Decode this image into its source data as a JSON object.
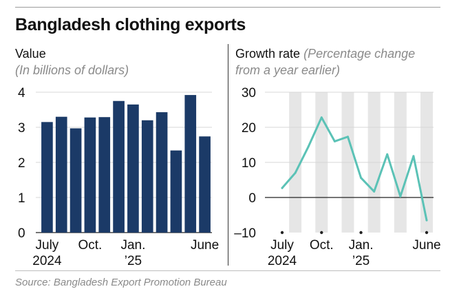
{
  "title": "Bangladesh clothing exports",
  "left_panel": {
    "heading": "Value",
    "note": "(In billions of dollars)"
  },
  "right_panel": {
    "heading": "Growth rate",
    "note_line1": "(Percentage change",
    "note_line2": "from a year earlier)"
  },
  "source": "Source: Bangladesh Export Promotion Bureau",
  "colors": {
    "bar": "#1b3a67",
    "line": "#5bc2b6",
    "band": "#e6e6e6",
    "text": "#111111",
    "note": "#8a8a8a",
    "grid": "#d7d7d7"
  },
  "chart_data": [
    {
      "type": "bar",
      "title": "Value",
      "ylabel": "In billions of dollars",
      "categories": [
        "Jul 2024",
        "Aug 2024",
        "Sep 2024",
        "Oct 2024",
        "Nov 2024",
        "Dec 2024",
        "Jan 2025",
        "Feb 2025",
        "Mar 2025",
        "Apr 2025",
        "May 2025",
        "Jun 2025"
      ],
      "values": [
        3.15,
        3.3,
        2.97,
        3.28,
        3.29,
        3.75,
        3.65,
        3.2,
        3.43,
        2.34,
        3.92,
        2.74
      ],
      "ylim": [
        0,
        4
      ],
      "yticks": [
        "0",
        "1",
        "2",
        "3",
        "4"
      ],
      "x_tick_labels": [
        {
          "index": 0,
          "line1": "July",
          "line2": "2024"
        },
        {
          "index": 3,
          "line1": "Oct.",
          "line2": ""
        },
        {
          "index": 6,
          "line1": "Jan.",
          "line2": "’25"
        },
        {
          "index": 11,
          "line1": "June",
          "line2": ""
        }
      ],
      "grid": true
    },
    {
      "type": "line",
      "title": "Growth rate",
      "ylabel": "Percentage change from a year earlier",
      "categories": [
        "Jul 2024",
        "Aug 2024",
        "Sep 2024",
        "Oct 2024",
        "Nov 2024",
        "Dec 2024",
        "Jan 2025",
        "Feb 2025",
        "Mar 2025",
        "Apr 2025",
        "May 2025",
        "Jun 2025"
      ],
      "values": [
        2.7,
        7.0,
        14.5,
        22.8,
        16.0,
        17.3,
        5.6,
        1.7,
        12.3,
        0.3,
        11.8,
        -6.5
      ],
      "ylim": [
        -10,
        30
      ],
      "yticks": [
        "30",
        "20",
        "10",
        "0",
        "–10"
      ],
      "ytick_values": [
        30,
        20,
        10,
        0,
        -10
      ],
      "shaded_months": [
        1,
        3,
        5,
        7,
        9,
        11
      ],
      "x_tick_labels": [
        {
          "index": 0,
          "line1": "July",
          "line2": "2024"
        },
        {
          "index": 3,
          "line1": "Oct.",
          "line2": ""
        },
        {
          "index": 6,
          "line1": "Jan.",
          "line2": "’25"
        },
        {
          "index": 11,
          "line1": "June",
          "line2": ""
        }
      ],
      "grid": true
    }
  ]
}
